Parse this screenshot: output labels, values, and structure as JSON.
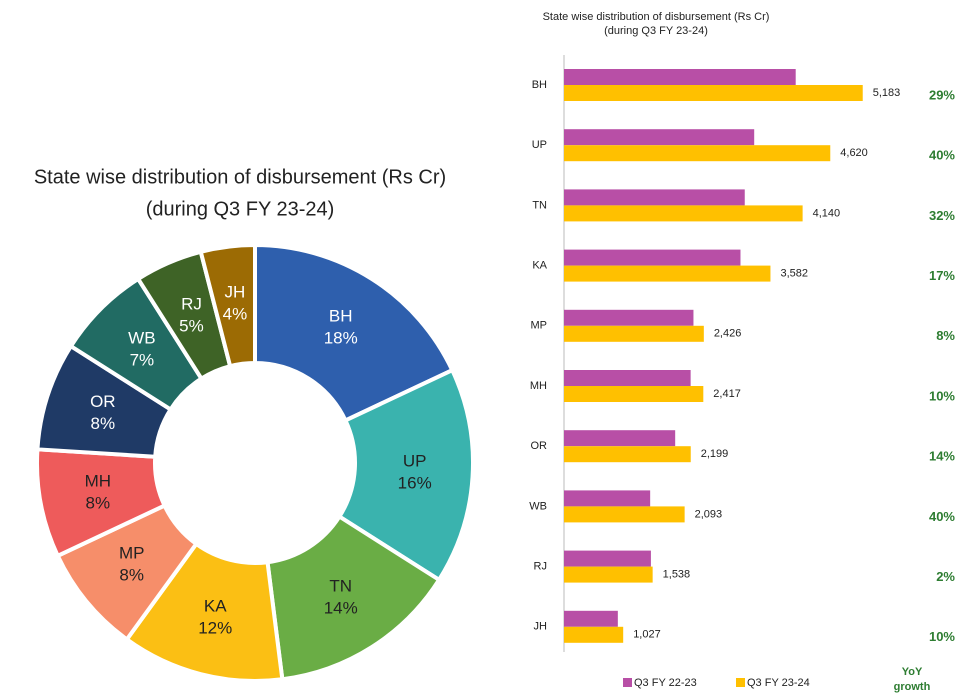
{
  "chart_data": [
    {
      "type": "donut",
      "title": [
        "State wise distribution of disbursement (Rs Cr)",
        "(during Q3 FY 23-24)"
      ],
      "categories": [
        "BH",
        "UP",
        "TN",
        "KA",
        "MP",
        "MH",
        "OR",
        "WB",
        "RJ",
        "JH"
      ],
      "values": [
        18,
        16,
        14,
        12,
        8,
        8,
        8,
        7,
        5,
        4
      ],
      "value_labels": [
        "18%",
        "16%",
        "14%",
        "12%",
        "8%",
        "8%",
        "8%",
        "7%",
        "5%",
        "4%"
      ],
      "colors": [
        "#2e5fad",
        "#3ab3ae",
        "#6aad45",
        "#fbbf14",
        "#f68e6a",
        "#ee5b5b",
        "#1f3a66",
        "#216b63",
        "#3e6326",
        "#9c6b04"
      ]
    },
    {
      "type": "hbar",
      "title": [
        "State wise distribution of disbursement (Rs Cr)",
        "(during Q3 FY 23-24)"
      ],
      "categories": [
        "BH",
        "UP",
        "TN",
        "KA",
        "MP",
        "MH",
        "OR",
        "WB",
        "RJ",
        "JH"
      ],
      "xlim": [
        0,
        5500
      ],
      "series": [
        {
          "name": "Q3 FY 22-23",
          "color": "#b84fa6",
          "values": [
            4020,
            3300,
            3136,
            3062,
            2246,
            2197,
            1929,
            1495,
            1508,
            934
          ]
        },
        {
          "name": "Q3 FY 23-24",
          "color": "#ffc000",
          "values": [
            5183,
            4620,
            4140,
            3582,
            2426,
            2417,
            2199,
            2093,
            1538,
            1027
          ],
          "value_labels": [
            "5,183",
            "4,620",
            "4,140",
            "3,582",
            "2,426",
            "2,417",
            "2,199",
            "2,093",
            "1,538",
            "1,027"
          ]
        }
      ],
      "growth": {
        "title": [
          "YoY",
          "growth"
        ],
        "values": [
          29,
          40,
          32,
          17,
          8,
          10,
          14,
          40,
          2,
          10
        ],
        "value_labels": [
          "29%",
          "40%",
          "32%",
          "17%",
          "8%",
          "10%",
          "14%",
          "40%",
          "2%",
          "10%"
        ]
      }
    }
  ]
}
